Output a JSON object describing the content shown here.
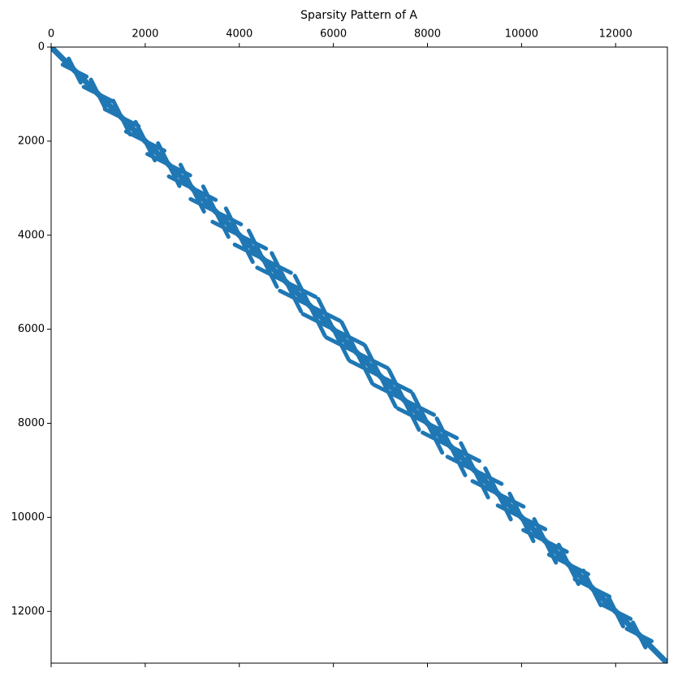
{
  "chart_data": {
    "type": "spy",
    "title": "Sparsity Pattern of A",
    "color": "#1f77b4",
    "xlim": [
      0,
      13100
    ],
    "ylim": [
      13100,
      0
    ],
    "xticks": [
      0,
      2000,
      4000,
      6000,
      8000,
      10000,
      12000
    ],
    "yticks": [
      0,
      2000,
      4000,
      6000,
      8000,
      10000,
      12000
    ],
    "segments": [
      {
        "x": [
          0,
          13100
        ],
        "y": [
          0,
          13100
        ]
      },
      {
        "x": [
          246,
          754
        ],
        "y": [
          373,
          627
        ]
      },
      {
        "x": [
          373,
          627
        ],
        "y": [
          246,
          754
        ]
      },
      {
        "x": [
          693,
          1307
        ],
        "y": [
          846,
          1154
        ]
      },
      {
        "x": [
          846,
          1154
        ],
        "y": [
          693,
          1307
        ]
      },
      {
        "x": [
          1142,
          1858
        ],
        "y": [
          1321,
          1679
        ]
      },
      {
        "x": [
          1321,
          1679
        ],
        "y": [
          1142,
          1858
        ]
      },
      {
        "x": [
          1592,
          2408
        ],
        "y": [
          1796,
          2204
        ]
      },
      {
        "x": [
          1796,
          2204
        ],
        "y": [
          1592,
          2408
        ]
      },
      {
        "x": [
          2046,
          2954
        ],
        "y": [
          2273,
          2727
        ]
      },
      {
        "x": [
          2273,
          2727
        ],
        "y": [
          2046,
          2954
        ]
      },
      {
        "x": [
          2503,
          3497
        ],
        "y": [
          2751,
          3249
        ]
      },
      {
        "x": [
          2751,
          3249
        ],
        "y": [
          2503,
          3497
        ]
      },
      {
        "x": [
          2965,
          4035
        ],
        "y": [
          3232,
          3768
        ]
      },
      {
        "x": [
          3232,
          3768
        ],
        "y": [
          2965,
          4035
        ]
      },
      {
        "x": [
          3432,
          4568
        ],
        "y": [
          3716,
          4284
        ]
      },
      {
        "x": [
          3716,
          4284
        ],
        "y": [
          3432,
          4568
        ]
      },
      {
        "x": [
          3903,
          5097
        ],
        "y": [
          4201,
          4799
        ]
      },
      {
        "x": [
          4201,
          4799
        ],
        "y": [
          3903,
          5097
        ]
      },
      {
        "x": [
          4381,
          5619
        ],
        "y": [
          4690,
          5310
        ]
      },
      {
        "x": [
          4690,
          5310
        ],
        "y": [
          4381,
          5619
        ]
      },
      {
        "x": [
          4864,
          6136
        ],
        "y": [
          5182,
          5818
        ]
      },
      {
        "x": [
          5182,
          5818
        ],
        "y": [
          4864,
          6136
        ]
      },
      {
        "x": [
          5354,
          6646
        ],
        "y": [
          5677,
          6323
        ]
      },
      {
        "x": [
          5677,
          6323
        ],
        "y": [
          5354,
          6646
        ]
      },
      {
        "x": [
          5850,
          7150
        ],
        "y": [
          6175,
          6825
        ]
      },
      {
        "x": [
          6175,
          6825
        ],
        "y": [
          5850,
          7150
        ]
      },
      {
        "x": [
          6353,
          7647
        ],
        "y": [
          6676,
          7324
        ]
      },
      {
        "x": [
          6676,
          7324
        ],
        "y": [
          6353,
          7647
        ]
      },
      {
        "x": [
          6862,
          8138
        ],
        "y": [
          7181,
          7819
        ]
      },
      {
        "x": [
          7181,
          7819
        ],
        "y": [
          6862,
          8138
        ]
      },
      {
        "x": [
          7377,
          8623
        ],
        "y": [
          7688,
          8312
        ]
      },
      {
        "x": [
          7688,
          8312
        ],
        "y": [
          7377,
          8623
        ]
      },
      {
        "x": [
          7898,
          9102
        ],
        "y": [
          8199,
          8801
        ]
      },
      {
        "x": [
          8199,
          8801
        ],
        "y": [
          7898,
          9102
        ]
      },
      {
        "x": [
          8425,
          9575
        ],
        "y": [
          8712,
          9288
        ]
      },
      {
        "x": [
          8712,
          9288
        ],
        "y": [
          8425,
          9575
        ]
      },
      {
        "x": [
          8958,
          10042
        ],
        "y": [
          9229,
          9771
        ]
      },
      {
        "x": [
          9229,
          9771
        ],
        "y": [
          8958,
          10042
        ]
      },
      {
        "x": [
          9496,
          10504
        ],
        "y": [
          9748,
          10252
        ]
      },
      {
        "x": [
          9748,
          10252
        ],
        "y": [
          9496,
          10504
        ]
      },
      {
        "x": [
          10038,
          10962
        ],
        "y": [
          10269,
          10731
        ]
      },
      {
        "x": [
          10269,
          10731
        ],
        "y": [
          10038,
          10962
        ]
      },
      {
        "x": [
          10583,
          11417
        ],
        "y": [
          10791,
          11209
        ]
      },
      {
        "x": [
          10791,
          11209
        ],
        "y": [
          10583,
          11417
        ]
      },
      {
        "x": [
          11132,
          11868
        ],
        "y": [
          11316,
          11684
        ]
      },
      {
        "x": [
          11316,
          11684
        ],
        "y": [
          11132,
          11868
        ]
      },
      {
        "x": [
          11683,
          12317
        ],
        "y": [
          11841,
          12159
        ]
      },
      {
        "x": [
          11841,
          12159
        ],
        "y": [
          11683,
          12317
        ]
      },
      {
        "x": [
          12236,
          12764
        ],
        "y": [
          12368,
          12632
        ]
      },
      {
        "x": [
          12368,
          12632
        ],
        "y": [
          12236,
          12764
        ]
      }
    ]
  }
}
